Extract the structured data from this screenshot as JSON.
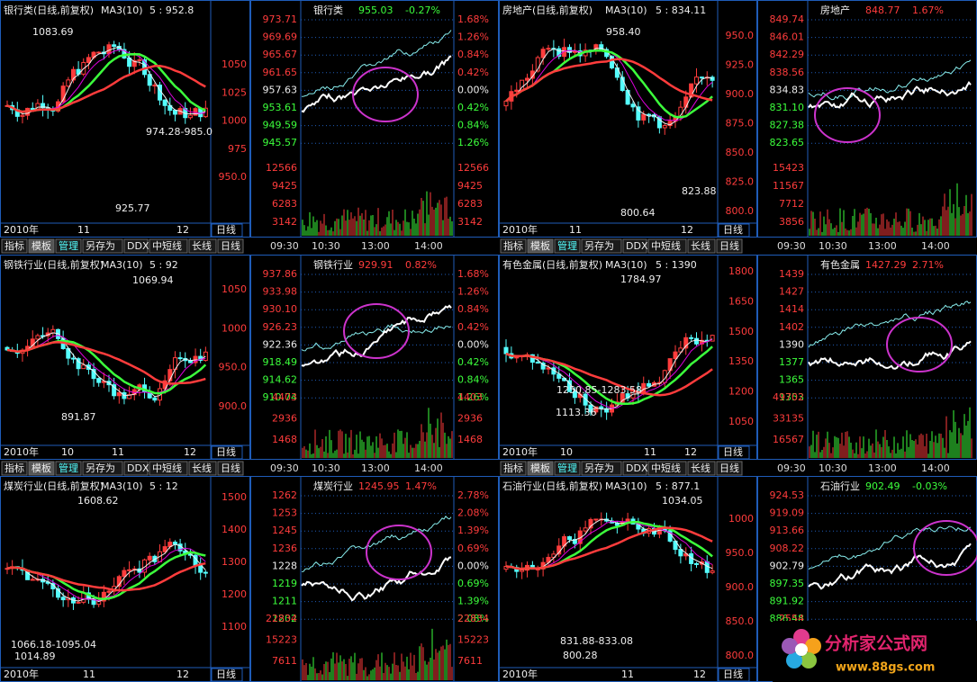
{
  "panels": [
    {
      "daily": {
        "title": "银行类(日线,前复权)",
        "indicator": "MA3(10)",
        "latest": "5 : 952.8",
        "axis": [
          "1050",
          "1025",
          "1000",
          "975",
          "950.0"
        ],
        "annotations": [
          "1083.69",
          "974.28-985.0",
          "925.77"
        ],
        "dates": [
          "2010年",
          "11",
          "12"
        ],
        "period_label": "日线"
      },
      "intraday": {
        "title": "银行类",
        "quote": "955.03",
        "change": "-0.27%",
        "prices": [
          "973.71",
          "969.69",
          "965.67",
          "961.65",
          "957.63",
          "953.61",
          "949.59",
          "945.57"
        ],
        "percents": [
          "1.68%",
          "1.26%",
          "0.84%",
          "0.42%",
          "0.00%",
          "0.42%",
          "0.84%",
          "1.26%"
        ],
        "volumes": [
          "12566",
          "9425",
          "6283",
          "3142"
        ]
      }
    },
    {
      "daily": {
        "title": "房地产(日线,前复权)",
        "indicator": "MA3(10)",
        "latest": "5 : 834.11",
        "axis": [
          "950.0",
          "925.0",
          "900.0",
          "875.0",
          "850.0",
          "825.0",
          "800.0"
        ],
        "annotations": [
          "958.40",
          "823.88",
          "800.64"
        ],
        "dates": [
          "2010年",
          "11",
          "12"
        ],
        "period_label": "日线"
      },
      "intraday": {
        "title": "房地产",
        "quote": "848.77",
        "change": "1.67%",
        "prices": [
          "849.74",
          "846.01",
          "842.29",
          "838.56",
          "834.83",
          "831.10",
          "827.38",
          "823.65"
        ],
        "volumes": [
          "15423",
          "11567",
          "7712",
          "3856"
        ]
      }
    },
    {
      "daily": {
        "title": "钢铁行业(日线,前复权)",
        "indicator": "MA3(10)",
        "latest": "5 : 92",
        "axis": [
          "1050",
          "1000",
          "950.0",
          "900.0"
        ],
        "annotations": [
          "1069.94",
          "891.87"
        ],
        "dates": [
          "2010年",
          "10",
          "11",
          "12"
        ],
        "period_label": "日线"
      },
      "intraday": {
        "title": "钢铁行业",
        "quote": "929.91",
        "change": "0.82%",
        "prices": [
          "937.86",
          "933.98",
          "930.10",
          "926.23",
          "922.36",
          "918.49",
          "914.62",
          "910.74"
        ],
        "percents": [
          "1.68%",
          "1.26%",
          "0.84%",
          "0.42%",
          "0.00%",
          "0.42%",
          "0.84%",
          "1.26%"
        ],
        "volumes": [
          "4403",
          "2936",
          "1468"
        ]
      }
    },
    {
      "daily": {
        "title": "有色金属(日线,前复权)",
        "indicator": "MA3(10)",
        "latest": "5 : 1390",
        "axis": [
          "1800",
          "1650",
          "1500",
          "1350",
          "1200",
          "1050"
        ],
        "annotations": [
          "1784.97",
          "1250.85-1283.58",
          "1113.36"
        ],
        "dates": [
          "2010年",
          "10",
          "11",
          "12"
        ],
        "period_label": "日线"
      },
      "intraday": {
        "title": "有色金属",
        "quote": "1427.29",
        "change": "2.71%",
        "prices": [
          "1439",
          "1427",
          "1414",
          "1402",
          "1390",
          "1377",
          "1365",
          "1353"
        ],
        "volumes": [
          "49702",
          "33135",
          "16567"
        ]
      }
    },
    {
      "daily": {
        "title": "煤炭行业(日线,前复权)",
        "indicator": "MA3(10)",
        "latest": "5 : 12",
        "axis": [
          "1500",
          "1400",
          "1300",
          "1200",
          "1100"
        ],
        "annotations": [
          "1608.62",
          "1066.18-1095.04",
          "1014.89"
        ],
        "dates": [
          "2010年",
          "11",
          "12"
        ],
        "period_label": "日线"
      },
      "intraday": {
        "title": "煤炭行业",
        "quote": "1245.95",
        "change": "1.47%",
        "prices": [
          "1262",
          "1253",
          "1245",
          "1236",
          "1228",
          "1219",
          "1211",
          "1202"
        ],
        "percents": [
          "2.78%",
          "2.08%",
          "1.39%",
          "0.69%",
          "0.00%",
          "0.69%",
          "1.39%",
          "2.08%"
        ],
        "volumes": [
          "22834",
          "15223",
          "7611"
        ]
      }
    },
    {
      "daily": {
        "title": "石油行业(日线,前复权)",
        "indicator": "MA3(10)",
        "latest": "5 : 877.1",
        "axis": [
          "1000",
          "950.0",
          "900.0",
          "850.0",
          "800.0"
        ],
        "annotations": [
          "1034.05",
          "831.88-833.08",
          "800.28"
        ],
        "dates": [
          "2010年",
          "11",
          "12"
        ],
        "period_label": "日线"
      },
      "intraday": {
        "title": "石油行业",
        "quote": "902.49",
        "change": "-0.03%",
        "prices": [
          "924.53",
          "919.09",
          "913.66",
          "908.22",
          "902.79",
          "897.35",
          "891.92",
          "886.48"
        ],
        "volumes": [
          "2554"
        ]
      }
    }
  ],
  "toolbar": [
    "指标",
    "模板",
    "管理",
    "另存为",
    "DDX",
    "中短线",
    "长线",
    "日线"
  ],
  "time_axis": [
    "09:30",
    "10:30",
    "13:00",
    "14:00"
  ],
  "logo": {
    "name": "分析家公式网",
    "url": "www.88gs.com"
  }
}
